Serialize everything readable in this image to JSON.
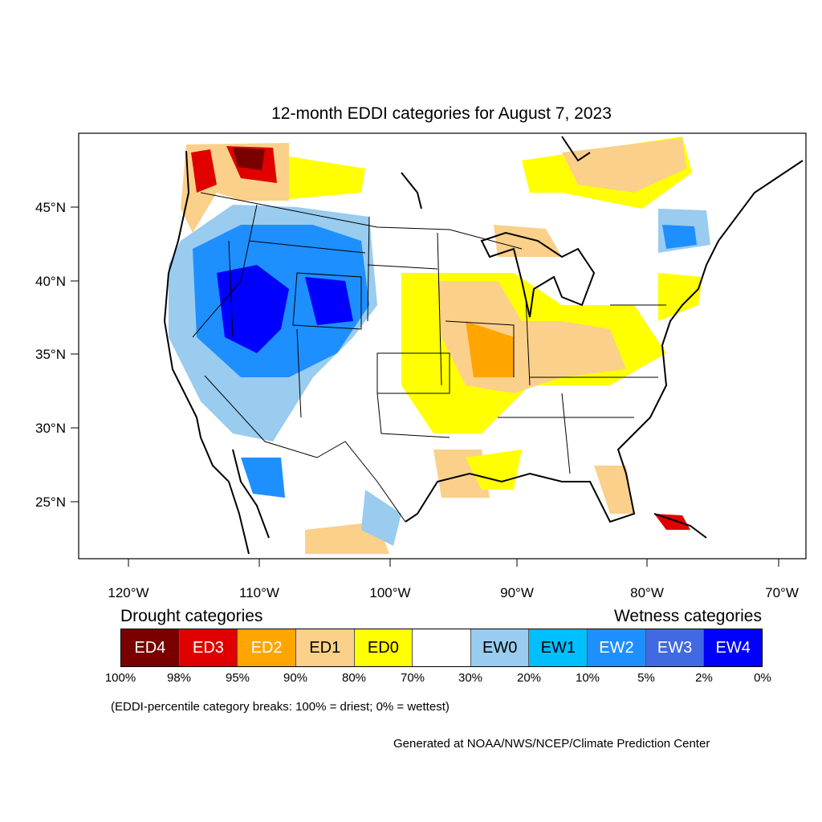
{
  "title": "12-month EDDI categories for August 7, 2023",
  "latitude_labels": [
    "45°N",
    "40°N",
    "35°N",
    "30°N",
    "25°N"
  ],
  "longitude_labels": [
    "120°W",
    "110°W",
    "100°W",
    "90°W",
    "80°W",
    "70°W"
  ],
  "legend": {
    "drought_heading": "Drought categories",
    "wetness_heading": "Wetness categories",
    "categories": [
      {
        "label": "ED4",
        "color": "#7a0000",
        "text_color": "#ffffff"
      },
      {
        "label": "ED3",
        "color": "#e00000",
        "text_color": "#ffffff"
      },
      {
        "label": "ED2",
        "color": "#ffa500",
        "text_color": "#ffffff"
      },
      {
        "label": "ED1",
        "color": "#fbd08a",
        "text_color": "#000000"
      },
      {
        "label": "ED0",
        "color": "#ffff00",
        "text_color": "#000000"
      },
      {
        "label": "",
        "color": "#ffffff",
        "text_color": "#000000"
      },
      {
        "label": "EW0",
        "color": "#99ccee",
        "text_color": "#000000"
      },
      {
        "label": "EW1",
        "color": "#00bfff",
        "text_color": "#000000"
      },
      {
        "label": "EW2",
        "color": "#1e8fff",
        "text_color": "#ffffff"
      },
      {
        "label": "EW3",
        "color": "#4169e1",
        "text_color": "#ffffff"
      },
      {
        "label": "EW4",
        "color": "#0000ff",
        "text_color": "#ffffff"
      }
    ],
    "percentiles": [
      "100%",
      "98%",
      "95%",
      "90%",
      "80%",
      "70%",
      "30%",
      "20%",
      "10%",
      "5%",
      "2%",
      "0%"
    ]
  },
  "breaks_note": "(EDDI-percentile category breaks: 100% = driest; 0% = wettest)",
  "credit": "Generated at NOAA/NWS/NCEP/Climate Prediction Center"
}
